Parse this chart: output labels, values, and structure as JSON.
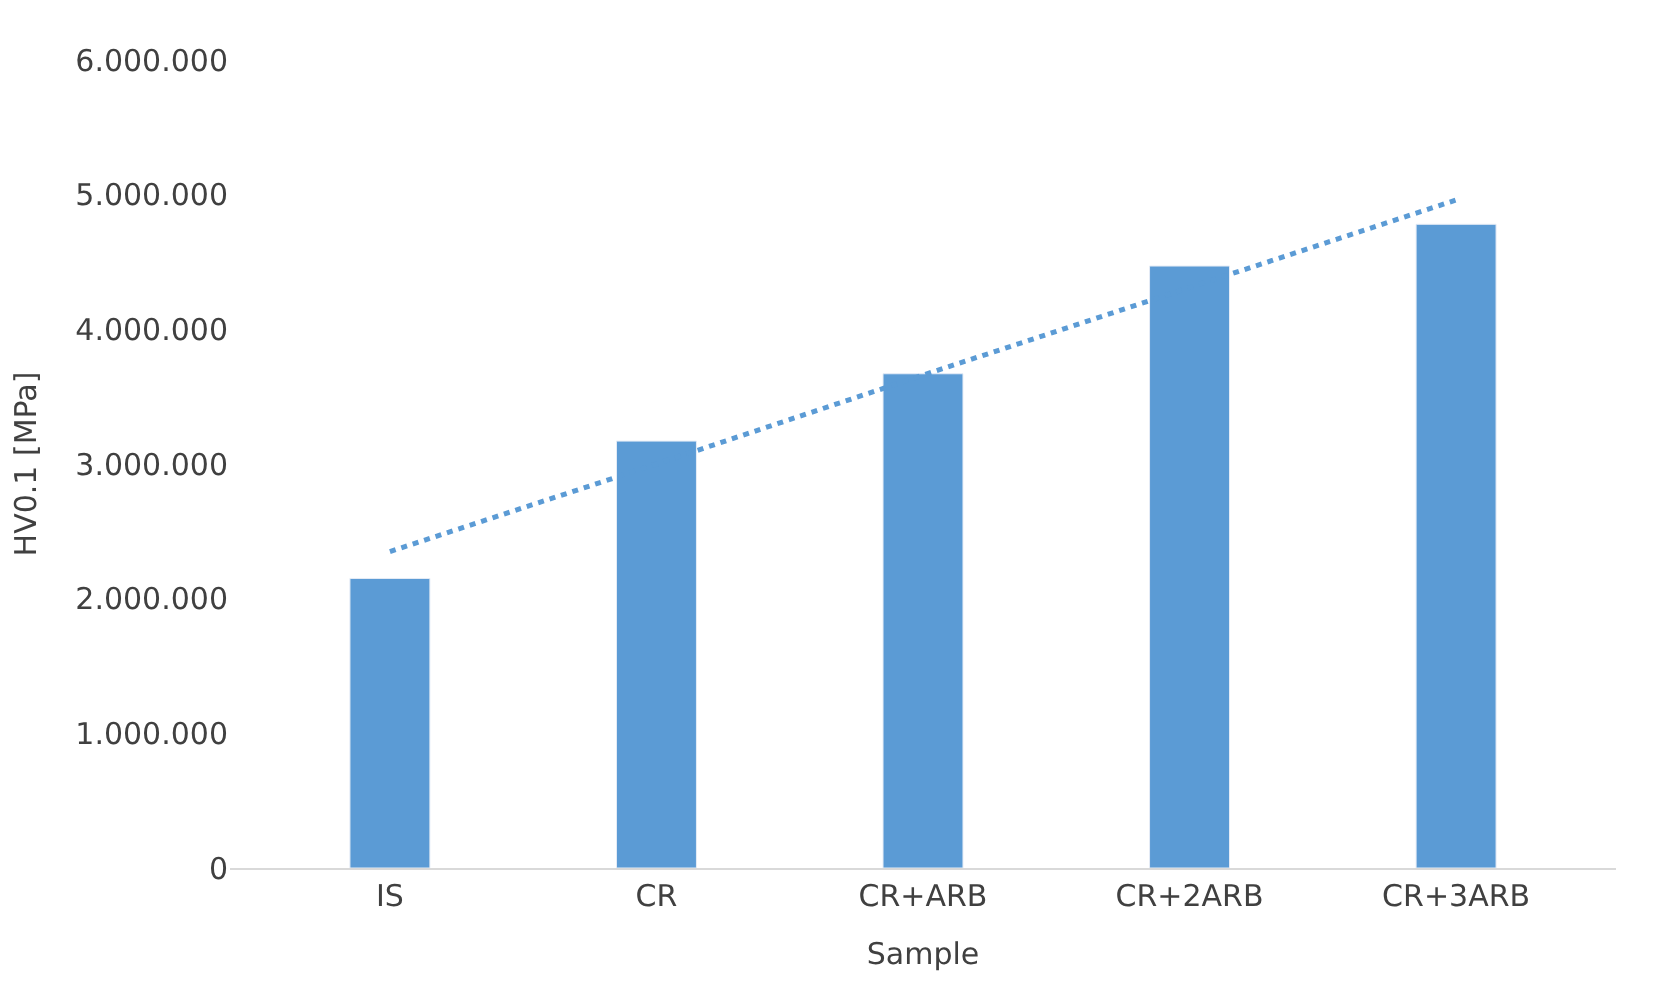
{
  "chart_data": {
    "type": "bar",
    "xlabel": "Sample",
    "ylabel": "HV0.1 [MPa]",
    "categories": [
      "IS",
      "CR",
      "CR+ARB",
      "CR+2ARB",
      "CR+3ARB"
    ],
    "series": [
      {
        "color": "#5b9bd5",
        "values": [
          2150000,
          3170000,
          3670000,
          4470000,
          4780000
        ]
      },
      {
        "type": "line",
        "color": "#5b9bd5",
        "line_style": "dotted",
        "marker": "none",
        "values": [
          2350000,
          3000000,
          3660000,
          4310000,
          4960000
        ]
      }
    ],
    "ylim": [
      0,
      6000000
    ],
    "yticks": [
      {
        "value": 0,
        "label": "0"
      },
      {
        "value": 1000000,
        "label": "1.000.000"
      },
      {
        "value": 2000000,
        "label": "2.000.000"
      },
      {
        "value": 3000000,
        "label": "3.000.000"
      },
      {
        "value": 4000000,
        "label": "4.000.000"
      },
      {
        "value": 5000000,
        "label": "5.000.000"
      },
      {
        "value": 6000000,
        "label": "6.000.000"
      }
    ],
    "grid": false
  }
}
